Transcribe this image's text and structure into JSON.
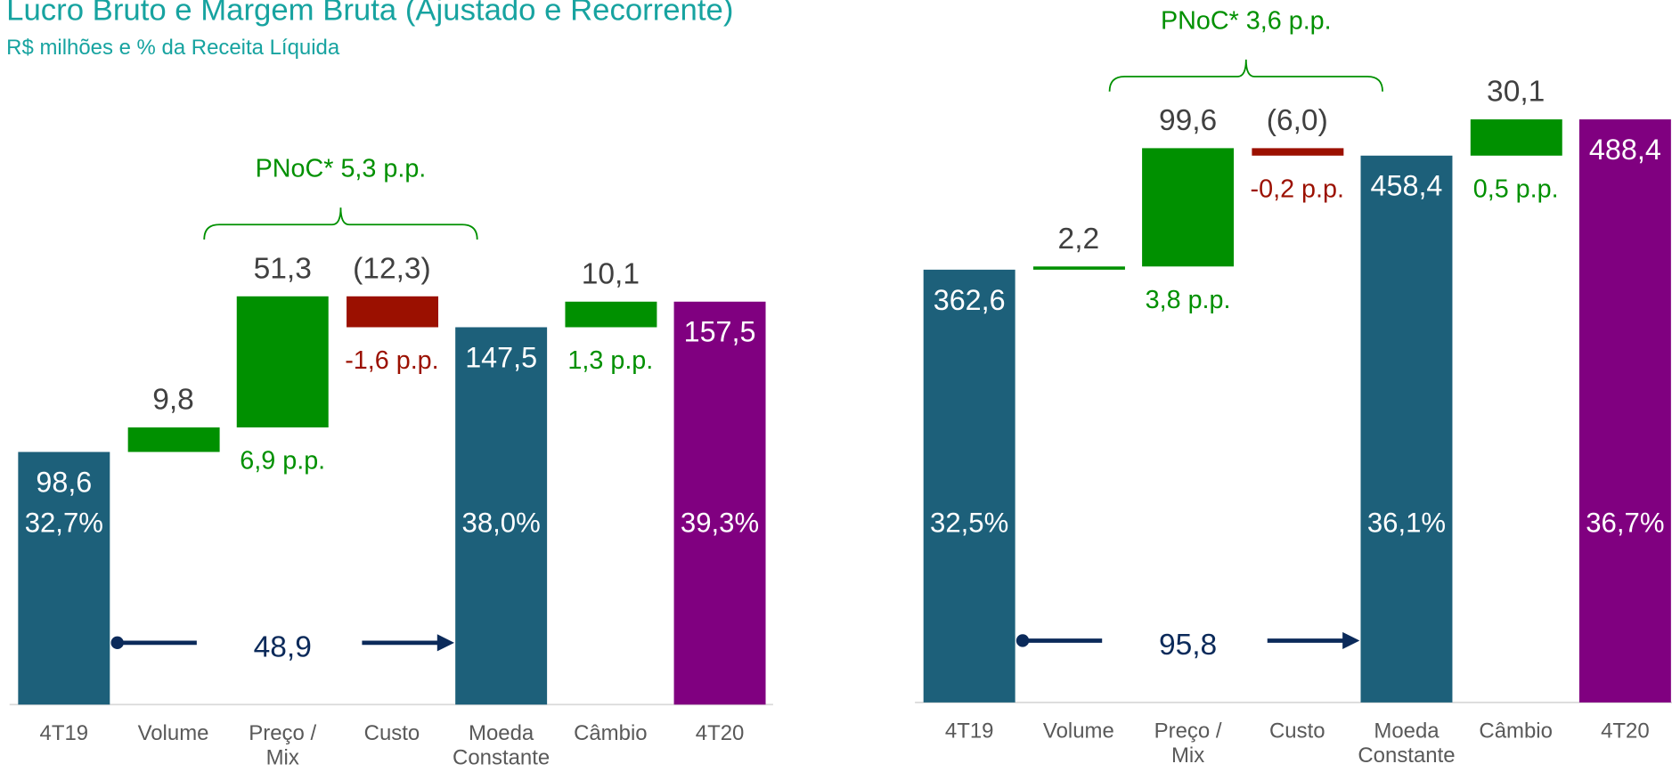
{
  "header": {
    "title": "Lucro Bruto e Margem Bruta (Ajustado e Recorrente)",
    "subtitle": "R$ milhões e % da Receita Líquida"
  },
  "chart_data": [
    {
      "type": "waterfall",
      "categories": [
        "4T19",
        "Volume",
        "Preço / Mix",
        "Custo",
        "Moeda Constante",
        "Câmbio",
        "4T20"
      ],
      "values": [
        98.6,
        9.8,
        51.3,
        -12.3,
        147.5,
        10.1,
        157.5
      ],
      "value_labels": [
        "98,6",
        "9,8",
        "51,3",
        "(12,3)",
        "147,5",
        "10,1",
        "157,5"
      ],
      "totals": [
        true,
        false,
        false,
        false,
        true,
        false,
        true
      ],
      "colors": [
        "#1d607a",
        "#009000",
        "#009000",
        "#9b1000",
        "#1d607a",
        "#009000",
        "#800080"
      ],
      "margin_labels": [
        "32,7%",
        null,
        "6,9 p.p.",
        "-1,6 p.p.",
        "38,0%",
        "1,3 p.p.",
        "39,3%"
      ],
      "bracket_label": "PNoC* 5,3 p.p.",
      "arrow_label": "48,9",
      "ylim": [
        0,
        250
      ]
    },
    {
      "type": "waterfall",
      "categories": [
        "4T19",
        "Volume",
        "Preço / Mix",
        "Custo",
        "Moeda Constante",
        "Câmbio",
        "4T20"
      ],
      "values": [
        362.6,
        2.2,
        99.6,
        -6.0,
        458.4,
        30.1,
        488.4
      ],
      "value_labels": [
        "362,6",
        "2,2",
        "99,6",
        "(6,0)",
        "458,4",
        "30,1",
        "488,4"
      ],
      "totals": [
        true,
        false,
        false,
        false,
        true,
        false,
        true
      ],
      "colors": [
        "#1d607a",
        "#009000",
        "#009000",
        "#9b1000",
        "#1d607a",
        "#009000",
        "#800080"
      ],
      "margin_labels": [
        "32,5%",
        null,
        "3,8 p.p.",
        "-0,2 p.p.",
        "36,1%",
        "0,5 p.p.",
        "36,7%"
      ],
      "bracket_label": "PNoC* 3,6 p.p.",
      "arrow_label": "95,8",
      "ylim": [
        0,
        500
      ]
    }
  ]
}
